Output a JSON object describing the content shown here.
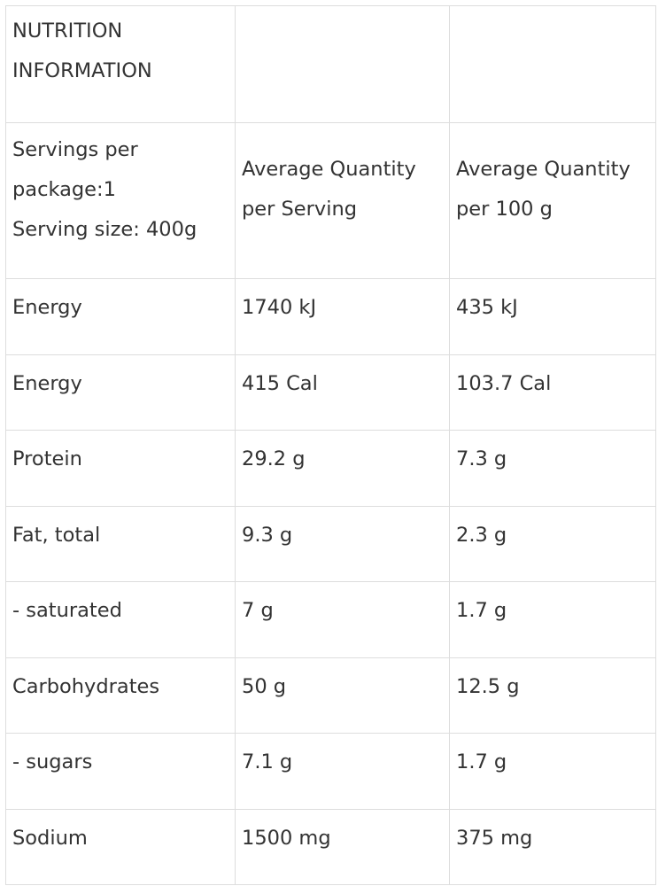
{
  "table": {
    "title_line1": "NUTRITION",
    "title_line2": "INFORMATION",
    "serving_info": {
      "line1": "Servings per",
      "line2": "package:1",
      "line3": "Serving size: 400g"
    },
    "col_per_serving": {
      "line1": "Average Quantity",
      "line2": "per Serving"
    },
    "col_per_100g": {
      "line1": "Average Quantity",
      "line2": "per 100 g"
    },
    "rows": [
      {
        "nutrient": "Energy",
        "per_serving": "1740 kJ",
        "per_100g": "435 kJ"
      },
      {
        "nutrient": "Energy",
        "per_serving": "415 Cal",
        "per_100g": "103.7 Cal"
      },
      {
        "nutrient": "Protein",
        "per_serving": "29.2 g",
        "per_100g": "7.3 g"
      },
      {
        "nutrient": "Fat, total",
        "per_serving": "9.3 g",
        "per_100g": "2.3 g"
      },
      {
        "nutrient": "- saturated",
        "per_serving": "7 g",
        "per_100g": "1.7 g"
      },
      {
        "nutrient": "Carbohydrates",
        "per_serving": "50 g",
        "per_100g": "12.5 g"
      },
      {
        "nutrient": "- sugars",
        "per_serving": "7.1 g",
        "per_100g": "1.7 g"
      },
      {
        "nutrient": "Sodium",
        "per_serving": "1500 mg",
        "per_100g": "375 mg"
      }
    ]
  }
}
